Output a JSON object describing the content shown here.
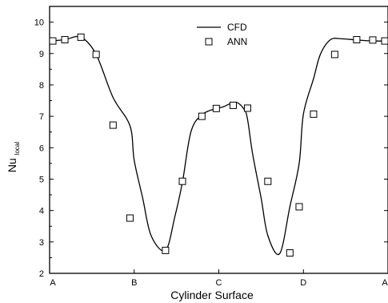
{
  "chart_data": {
    "type": "line",
    "xlabel": "Cylinder Surface",
    "ylabel": "Nu",
    "ylabel_sub": "local",
    "xlim": [
      0,
      4
    ],
    "ylim": [
      2,
      10.5
    ],
    "x_ticks": [
      {
        "value": 0,
        "label": "A"
      },
      {
        "value": 1,
        "label": "B"
      },
      {
        "value": 2,
        "label": "C"
      },
      {
        "value": 3,
        "label": "D"
      },
      {
        "value": 4,
        "label": "A"
      }
    ],
    "y_ticks": [
      2,
      3,
      4,
      5,
      6,
      7,
      8,
      9,
      10
    ],
    "grid": false,
    "legend_position": "top-center",
    "series": [
      {
        "name": "CFD",
        "style": "line",
        "color": "#000000",
        "x": [
          0.0,
          0.18,
          0.37,
          0.55,
          0.75,
          0.95,
          1.0,
          1.1,
          1.2,
          1.37,
          1.48,
          1.57,
          1.67,
          1.8,
          1.97,
          2.05,
          2.2,
          2.3,
          2.34,
          2.4,
          2.5,
          2.58,
          2.72,
          2.84,
          2.95,
          3.0,
          3.12,
          3.2,
          3.32,
          3.45,
          3.63,
          3.82,
          4.0
        ],
        "y": [
          9.4,
          9.44,
          9.52,
          8.97,
          7.6,
          6.7,
          5.6,
          4.4,
          3.2,
          2.73,
          3.8,
          4.9,
          6.5,
          7.05,
          7.25,
          7.3,
          7.45,
          7.22,
          6.9,
          5.8,
          4.4,
          3.2,
          2.63,
          4.12,
          5.5,
          7.07,
          8.2,
          8.97,
          9.44,
          9.47,
          9.43,
          9.4,
          9.4
        ]
      },
      {
        "name": "ANN",
        "style": "marker",
        "marker": "square",
        "color": "#000000",
        "x": [
          0.0,
          0.18,
          0.37,
          0.55,
          0.75,
          0.95,
          1.37,
          1.57,
          1.8,
          1.97,
          2.17,
          2.34,
          2.58,
          2.84,
          2.95,
          3.12,
          3.37,
          3.63,
          3.82,
          4.0
        ],
        "y": [
          9.4,
          9.44,
          9.52,
          8.97,
          6.72,
          3.76,
          2.73,
          4.93,
          7.0,
          7.25,
          7.35,
          7.26,
          4.93,
          2.65,
          4.12,
          7.07,
          8.97,
          9.44,
          9.43,
          9.4
        ]
      }
    ]
  }
}
